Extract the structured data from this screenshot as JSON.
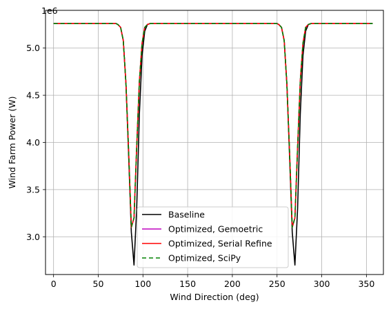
{
  "chart_data": {
    "type": "line",
    "title": "",
    "xlabel": "Wind Direction (deg)",
    "ylabel": "Wind Farm Power (W)",
    "offset_label": "1e6",
    "scale": 1000000,
    "xlim": [
      -9,
      369
    ],
    "ylim": [
      2.6,
      5.4
    ],
    "xticks": [
      0,
      50,
      100,
      150,
      200,
      250,
      300,
      350
    ],
    "yticks": [
      3.0,
      3.5,
      4.0,
      4.5,
      5.0
    ],
    "ytick_labels": [
      "3.0",
      "3.5",
      "4.0",
      "4.5",
      "5.0"
    ],
    "grid": true,
    "legend_position": "lower-center",
    "x": [
      0,
      5,
      10,
      15,
      20,
      25,
      30,
      35,
      40,
      45,
      50,
      55,
      60,
      65,
      70,
      72,
      75,
      78,
      81,
      84,
      87,
      90,
      93,
      96,
      99,
      102,
      105,
      108,
      110,
      115,
      120,
      125,
      130,
      135,
      140,
      145,
      150,
      155,
      160,
      165,
      170,
      175,
      180,
      185,
      190,
      195,
      200,
      205,
      210,
      215,
      220,
      225,
      230,
      235,
      240,
      245,
      250,
      252,
      255,
      258,
      261,
      264,
      267,
      270,
      273,
      276,
      279,
      282,
      285,
      288,
      290,
      295,
      300,
      305,
      310,
      315,
      320,
      325,
      330,
      335,
      340,
      345,
      350,
      355,
      357
    ],
    "series": [
      {
        "name": "Baseline",
        "color": "#000000",
        "dash": "",
        "values": [
          5.26,
          5.26,
          5.26,
          5.26,
          5.26,
          5.26,
          5.26,
          5.26,
          5.26,
          5.26,
          5.26,
          5.26,
          5.26,
          5.26,
          5.26,
          5.25,
          5.22,
          5.08,
          4.62,
          3.85,
          3.05,
          2.7,
          3.3,
          4.3,
          4.92,
          5.18,
          5.25,
          5.26,
          5.26,
          5.26,
          5.26,
          5.26,
          5.26,
          5.26,
          5.26,
          5.26,
          5.26,
          5.26,
          5.26,
          5.26,
          5.26,
          5.26,
          5.26,
          5.26,
          5.26,
          5.26,
          5.26,
          5.26,
          5.26,
          5.26,
          5.26,
          5.26,
          5.26,
          5.26,
          5.26,
          5.26,
          5.26,
          5.25,
          5.22,
          5.08,
          4.62,
          3.85,
          3.05,
          2.7,
          3.3,
          4.3,
          4.92,
          5.18,
          5.25,
          5.26,
          5.26,
          5.26,
          5.26,
          5.26,
          5.26,
          5.26,
          5.26,
          5.26,
          5.26,
          5.26,
          5.26,
          5.26,
          5.26,
          5.26,
          5.26
        ]
      },
      {
        "name": "Optimized, Gemoetric",
        "color": "#bf00bf",
        "dash": "",
        "values": [
          5.26,
          5.26,
          5.26,
          5.26,
          5.26,
          5.26,
          5.26,
          5.26,
          5.26,
          5.26,
          5.26,
          5.26,
          5.26,
          5.26,
          5.26,
          5.25,
          5.22,
          5.08,
          4.62,
          3.9,
          3.1,
          3.2,
          3.95,
          4.65,
          5.05,
          5.22,
          5.25,
          5.26,
          5.26,
          5.26,
          5.26,
          5.26,
          5.26,
          5.26,
          5.26,
          5.26,
          5.26,
          5.26,
          5.26,
          5.26,
          5.26,
          5.26,
          5.26,
          5.26,
          5.26,
          5.26,
          5.26,
          5.26,
          5.26,
          5.26,
          5.26,
          5.26,
          5.26,
          5.26,
          5.26,
          5.26,
          5.26,
          5.25,
          5.22,
          5.08,
          4.62,
          3.9,
          3.1,
          3.2,
          3.95,
          4.65,
          5.05,
          5.22,
          5.25,
          5.26,
          5.26,
          5.26,
          5.26,
          5.26,
          5.26,
          5.26,
          5.26,
          5.26,
          5.26,
          5.26,
          5.26,
          5.26,
          5.26,
          5.26,
          5.26
        ]
      },
      {
        "name": "Optimized, Serial Refine",
        "color": "#ff0000",
        "dash": "",
        "values": [
          5.26,
          5.26,
          5.26,
          5.26,
          5.26,
          5.26,
          5.26,
          5.26,
          5.26,
          5.26,
          5.26,
          5.26,
          5.26,
          5.26,
          5.26,
          5.25,
          5.22,
          5.08,
          4.62,
          3.9,
          3.1,
          3.2,
          3.95,
          4.65,
          5.05,
          5.22,
          5.25,
          5.26,
          5.26,
          5.26,
          5.26,
          5.26,
          5.26,
          5.26,
          5.26,
          5.26,
          5.26,
          5.26,
          5.26,
          5.26,
          5.26,
          5.26,
          5.26,
          5.26,
          5.26,
          5.26,
          5.26,
          5.26,
          5.26,
          5.26,
          5.26,
          5.26,
          5.26,
          5.26,
          5.26,
          5.26,
          5.26,
          5.25,
          5.22,
          5.08,
          4.62,
          3.9,
          3.1,
          3.2,
          3.95,
          4.65,
          5.05,
          5.22,
          5.25,
          5.26,
          5.26,
          5.26,
          5.26,
          5.26,
          5.26,
          5.26,
          5.26,
          5.26,
          5.26,
          5.26,
          5.26,
          5.26,
          5.26,
          5.26,
          5.26
        ]
      },
      {
        "name": "Optimized, SciPy",
        "color": "#008000",
        "dash": "6,4",
        "values": [
          5.26,
          5.26,
          5.26,
          5.26,
          5.26,
          5.26,
          5.26,
          5.26,
          5.26,
          5.26,
          5.26,
          5.26,
          5.26,
          5.26,
          5.26,
          5.25,
          5.22,
          5.08,
          4.62,
          3.9,
          3.1,
          3.2,
          3.95,
          4.65,
          5.05,
          5.22,
          5.25,
          5.26,
          5.26,
          5.26,
          5.26,
          5.26,
          5.26,
          5.26,
          5.26,
          5.26,
          5.26,
          5.26,
          5.26,
          5.26,
          5.26,
          5.26,
          5.26,
          5.26,
          5.26,
          5.26,
          5.26,
          5.26,
          5.26,
          5.26,
          5.26,
          5.26,
          5.26,
          5.26,
          5.26,
          5.26,
          5.26,
          5.25,
          5.22,
          5.08,
          4.62,
          3.9,
          3.1,
          3.2,
          3.95,
          4.65,
          5.05,
          5.22,
          5.25,
          5.26,
          5.26,
          5.26,
          5.26,
          5.26,
          5.26,
          5.26,
          5.26,
          5.26,
          5.26,
          5.26,
          5.26,
          5.26,
          5.26,
          5.26,
          5.26
        ]
      }
    ]
  }
}
